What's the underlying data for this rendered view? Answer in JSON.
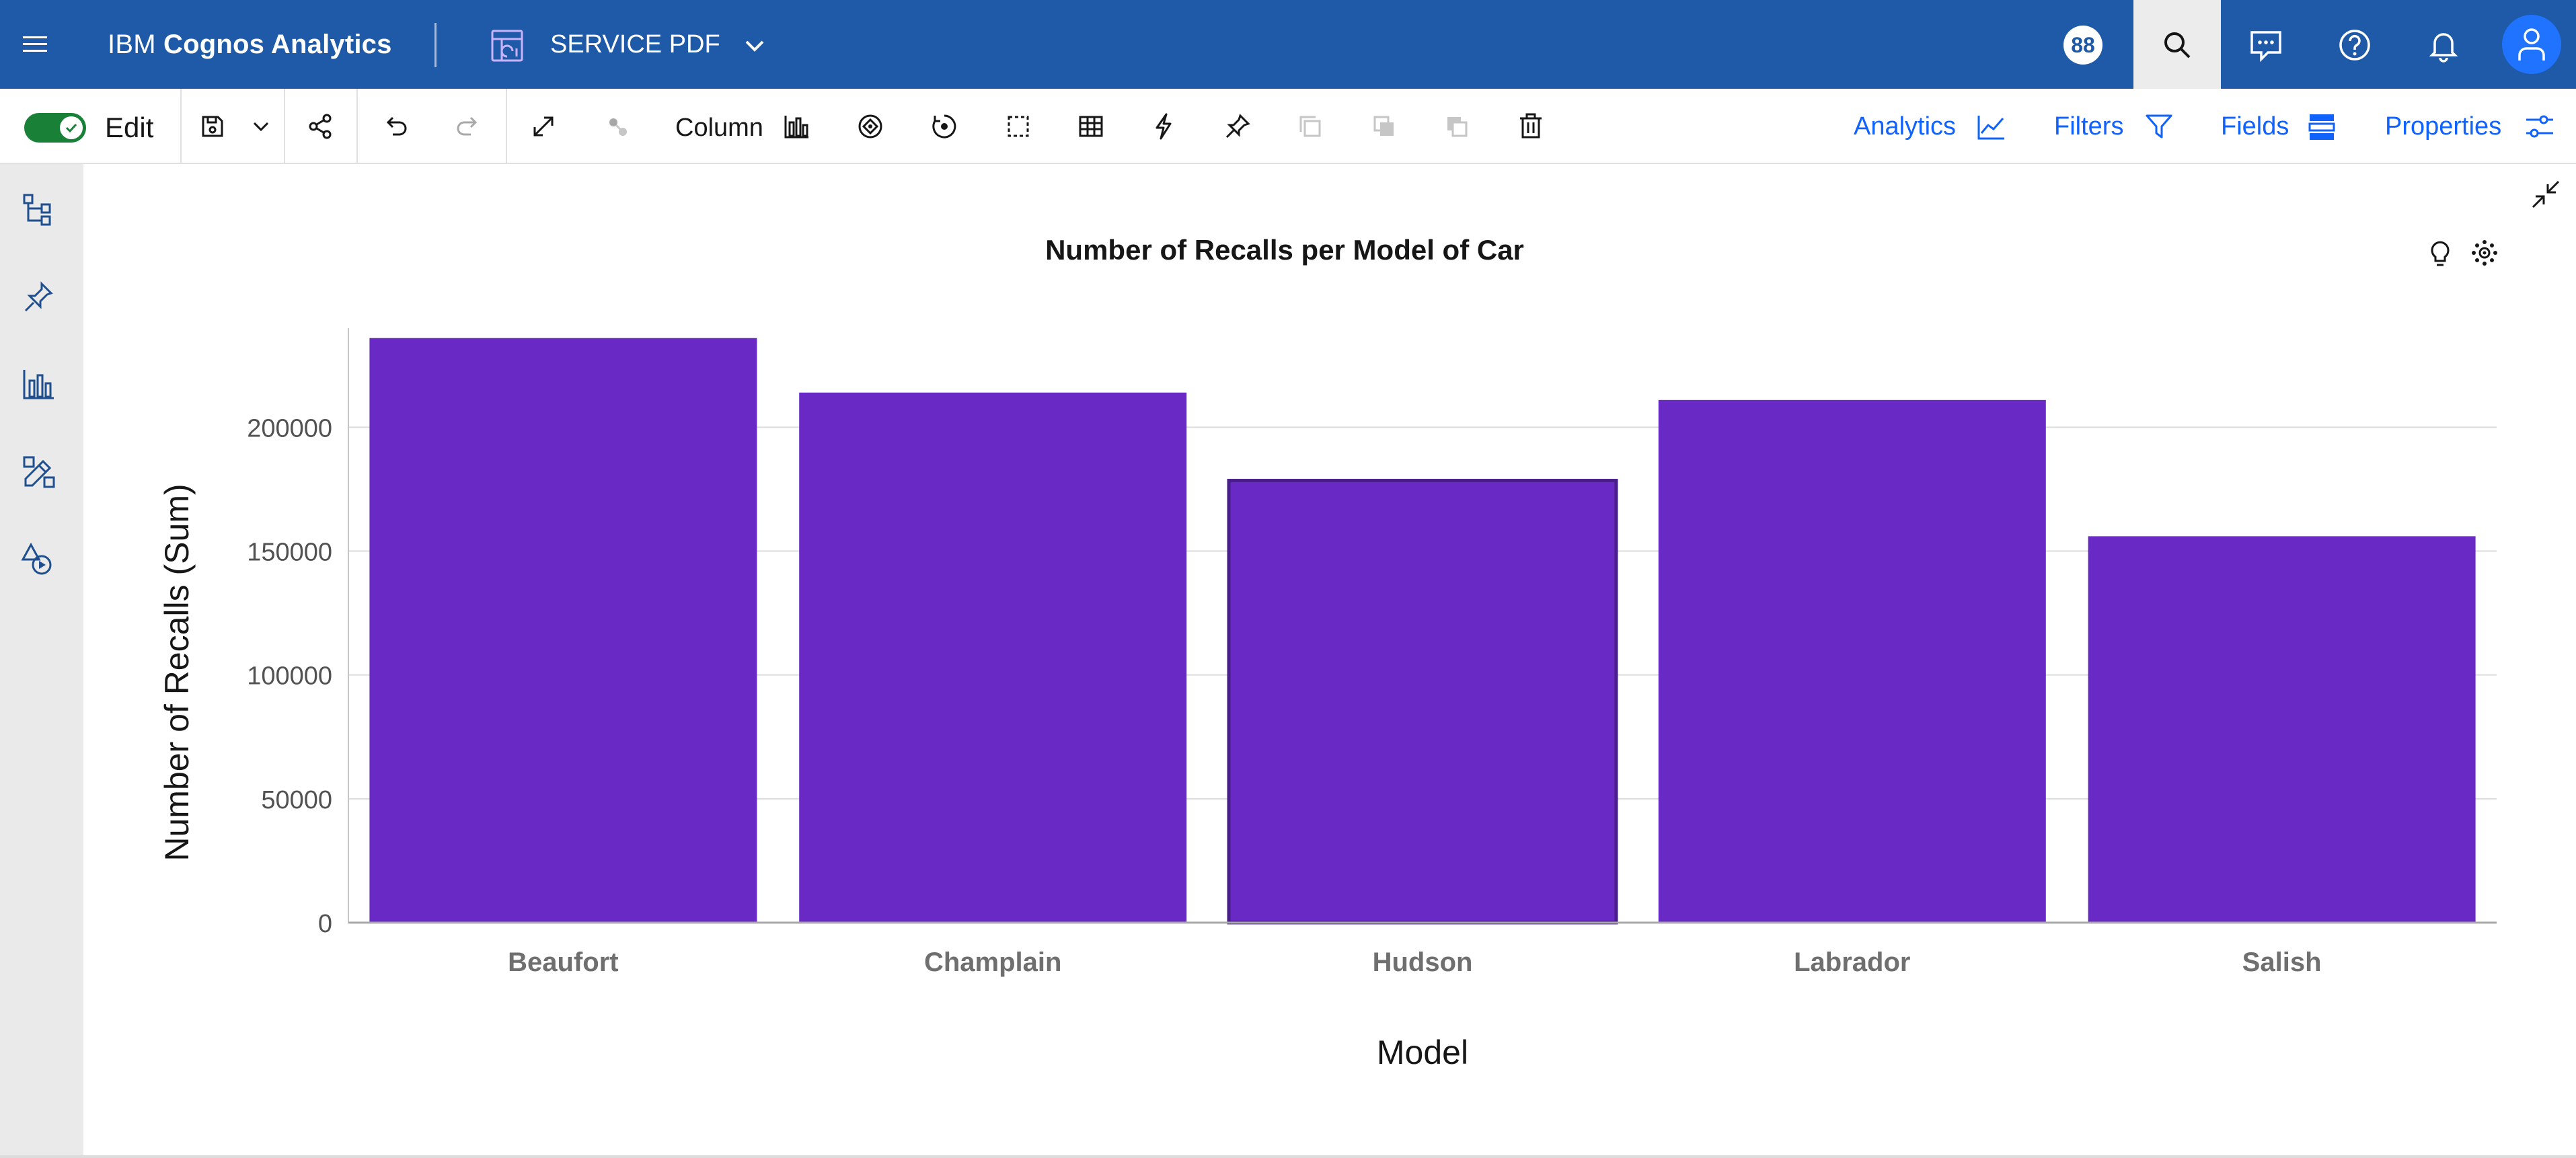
{
  "header": {
    "brand_prefix": "IBM ",
    "brand_name": "Cognos Analytics",
    "report_name": "SERVICE PDF",
    "badge_count": "88",
    "icons": [
      "menu-icon",
      "report-icon",
      "chevron-down-icon",
      "search-icon",
      "chat-icon",
      "help-icon",
      "notification-icon",
      "user-icon"
    ]
  },
  "toolbar": {
    "edit_label": "Edit",
    "visualization_type": "Column",
    "analytics_label": "Analytics",
    "filters_label": "Filters",
    "fields_label": "Fields",
    "properties_label": "Properties"
  },
  "colors": {
    "header_bg": "#1f5aa8",
    "bar_fill": "#6929c4",
    "bar_selected_stroke": "#491d8b",
    "link": "#0f62fe",
    "toggle_on": "#198038"
  },
  "chart_data": {
    "type": "bar",
    "title": "Number of Recalls per Model of Car",
    "xlabel": "Model",
    "ylabel": "Number of Recalls (Sum)",
    "categories": [
      "Beaufort",
      "Champlain",
      "Hudson",
      "Labrador",
      "Salish"
    ],
    "values": [
      236000,
      214000,
      178500,
      211000,
      156000
    ],
    "selected_index": 2,
    "ylim": [
      0,
      240000
    ],
    "yticks": [
      0,
      50000,
      100000,
      150000,
      200000
    ],
    "ytick_labels": [
      "0",
      "50000",
      "100000",
      "150000",
      "200000"
    ],
    "grid": true
  }
}
